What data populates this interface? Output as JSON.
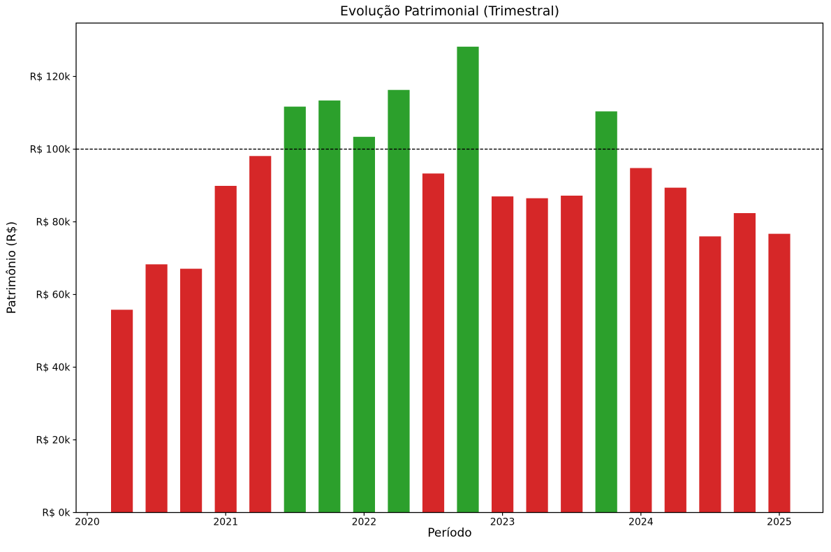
{
  "figure": {
    "background_color": "#ffffff"
  },
  "chart_data": {
    "type": "bar",
    "title": "Evolução Patrimonial (Trimestral)",
    "xlabel": "Período",
    "ylabel": "Patrimônio (R$)",
    "unit": "BRL",
    "categories": [
      "2020-Q2",
      "2020-Q3",
      "2020-Q4",
      "2021-Q1",
      "2021-Q2",
      "2021-Q3",
      "2021-Q4",
      "2022-Q1",
      "2022-Q2",
      "2022-Q3",
      "2022-Q4",
      "2023-Q1",
      "2023-Q2",
      "2023-Q3",
      "2023-Q4",
      "2024-Q1",
      "2024-Q2",
      "2024-Q3",
      "2024-Q4",
      "2025-Q1"
    ],
    "values": [
      55800,
      68300,
      67100,
      89900,
      98100,
      111700,
      113400,
      103400,
      116300,
      93300,
      128200,
      87000,
      86500,
      87200,
      110400,
      94800,
      89400,
      76000,
      82400,
      76700
    ],
    "threshold": 100000,
    "threshold_line": {
      "style": "dashed",
      "color": "#000000"
    },
    "bar_color_above": "#2ca02c",
    "bar_color_below": "#d62728",
    "y_ticks": [
      {
        "value": 0,
        "label": "R$ 0k"
      },
      {
        "value": 20000,
        "label": "R$ 20k"
      },
      {
        "value": 40000,
        "label": "R$ 40k"
      },
      {
        "value": 60000,
        "label": "R$ 60k"
      },
      {
        "value": 80000,
        "label": "R$ 80k"
      },
      {
        "value": 100000,
        "label": "R$ 100k"
      },
      {
        "value": 120000,
        "label": "R$ 120k"
      }
    ],
    "x_ticks": [
      {
        "year": 2020,
        "label": "2020"
      },
      {
        "year": 2021,
        "label": "2021"
      },
      {
        "year": 2022,
        "label": "2022"
      },
      {
        "year": 2023,
        "label": "2023"
      },
      {
        "year": 2024,
        "label": "2024"
      },
      {
        "year": 2025,
        "label": "2025"
      }
    ],
    "ylim": [
      0,
      134700
    ],
    "grid": false,
    "legend": null
  }
}
